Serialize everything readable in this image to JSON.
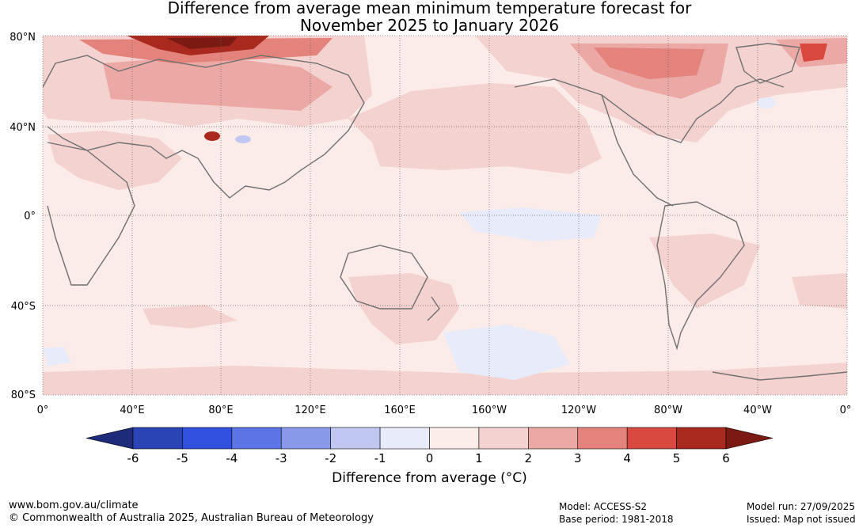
{
  "title": {
    "line1": "Difference from average mean minimum temperature forecast for",
    "line2": "November 2025 to January 2026"
  },
  "map": {
    "lat_labels": [
      "80°N",
      "40°N",
      "0°",
      "40°S",
      "80°S"
    ],
    "lon_labels": [
      "0°",
      "40°E",
      "80°E",
      "120°E",
      "160°E",
      "160°W",
      "120°W",
      "80°W",
      "40°W",
      "0°"
    ],
    "background_anomaly_class": "0 to 1"
  },
  "colorbar": {
    "label": "Difference from average (°C)",
    "ticks": [
      "-6",
      "-5",
      "-4",
      "-3",
      "-2",
      "-1",
      "0",
      "1",
      "2",
      "3",
      "4",
      "5",
      "6"
    ],
    "colors": [
      "#1d2b7a",
      "#2a43b5",
      "#3250e0",
      "#5c74e6",
      "#8899ea",
      "#c0c8f2",
      "#e8ecfa",
      "#fbebe9",
      "#f4d2cf",
      "#eba8a4",
      "#e4827c",
      "#d9483f",
      "#a9291f",
      "#7a1a12"
    ]
  },
  "footer": {
    "website": "www.bom.gov.au/climate",
    "copyright": "© Commonwealth of Australia 2025, Australian Bureau of Meteorology",
    "model": "Model: ACCESS-S2",
    "base_period": "Base period: 1981-2018",
    "model_run": "Model run: 27/09/2025",
    "issued": "Issued: Map not issued"
  }
}
